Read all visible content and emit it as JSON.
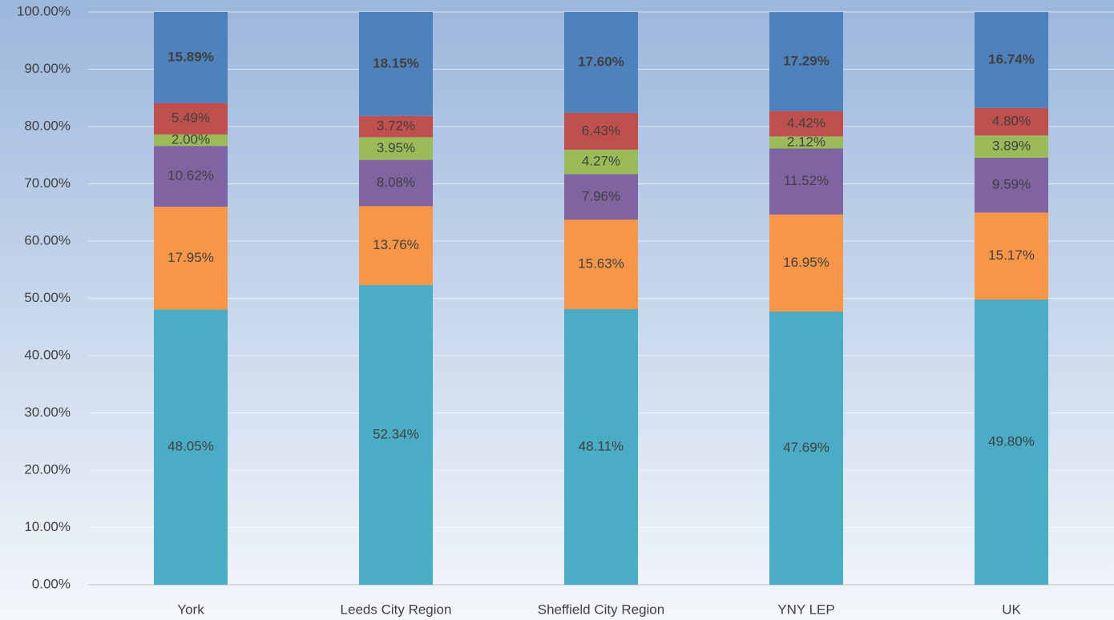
{
  "chart_data": {
    "type": "stacked_bar",
    "categories": [
      "York",
      "Leeds City Region",
      "Sheffield City Region",
      "YNY LEP",
      "UK"
    ],
    "series": [
      {
        "color": "#4bacc6",
        "values": [
          48.05,
          52.34,
          48.11,
          47.69,
          49.8
        ],
        "value_labels": [
          "48.05%",
          "52.34%",
          "48.11%",
          "47.69%",
          "49.80%"
        ]
      },
      {
        "color": "#f79646",
        "values": [
          17.95,
          13.76,
          15.63,
          16.95,
          15.17
        ],
        "value_labels": [
          "17.95%",
          "13.76%",
          "15.63%",
          "16.95%",
          "15.17%"
        ]
      },
      {
        "color": "#8064a2",
        "values": [
          10.62,
          8.08,
          7.96,
          11.52,
          9.59
        ],
        "value_labels": [
          "10.62%",
          "8.08%",
          "7.96%",
          "11.52%",
          "9.59%"
        ]
      },
      {
        "color": "#9bbb59",
        "values": [
          2.0,
          3.95,
          4.27,
          2.12,
          3.89
        ],
        "value_labels": [
          "2.00%",
          "3.95%",
          "4.27%",
          "2.12%",
          "3.89%"
        ]
      },
      {
        "color": "#c0504d",
        "values": [
          5.49,
          3.72,
          6.43,
          4.42,
          4.8
        ],
        "value_labels": [
          "5.49%",
          "3.72%",
          "6.43%",
          "4.42%",
          "4.80%"
        ]
      },
      {
        "color": "#4f81bd",
        "values": [
          15.89,
          18.15,
          17.6,
          17.29,
          16.74
        ],
        "value_labels": [
          "15.89%",
          "18.15%",
          "17.60%",
          "17.29%",
          "16.74%"
        ]
      }
    ],
    "ylim": [
      0,
      100
    ],
    "yticks": [
      {
        "value": 0,
        "label": "0.00%"
      },
      {
        "value": 10,
        "label": "10.00%"
      },
      {
        "value": 20,
        "label": "20.00%"
      },
      {
        "value": 30,
        "label": "30.00%"
      },
      {
        "value": 40,
        "label": "40.00%"
      },
      {
        "value": 50,
        "label": "50.00%"
      },
      {
        "value": 60,
        "label": "60.00%"
      },
      {
        "value": 70,
        "label": "70.00%"
      },
      {
        "value": 80,
        "label": "80.00%"
      },
      {
        "value": 90,
        "label": "90.00%"
      },
      {
        "value": 100,
        "label": "100.00%"
      }
    ],
    "grid": true
  }
}
